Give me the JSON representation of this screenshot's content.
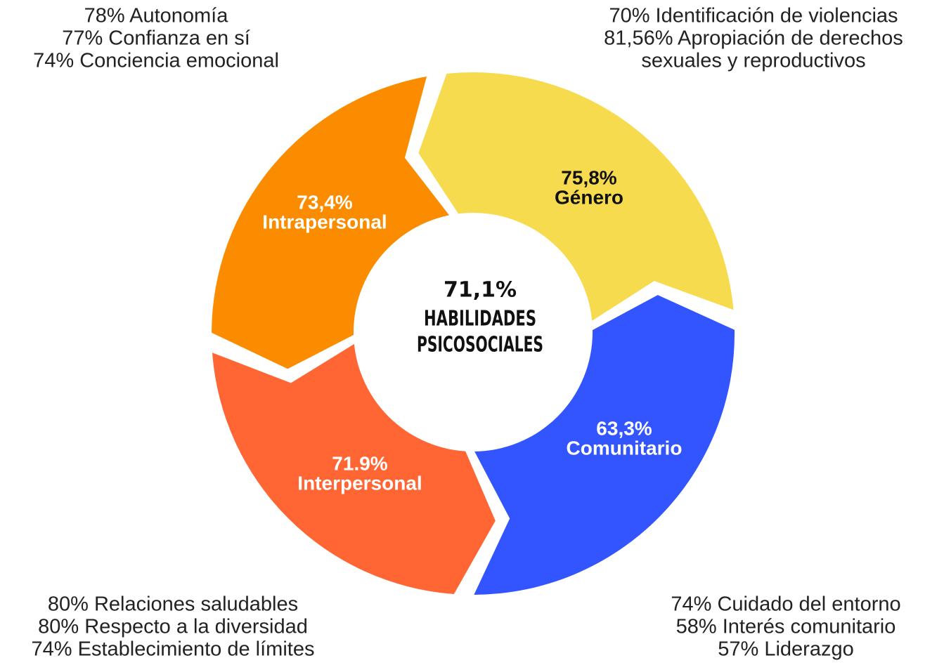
{
  "center": {
    "value": "71,1%",
    "lines": [
      "HABILIDADES",
      "PSICOSOCIALES"
    ]
  },
  "segments": [
    {
      "value": "73,4%",
      "label": "Intrapersonal",
      "items": [
        "78%  Autonomía",
        "77% Confianza en sí",
        "74% Conciencia emocional"
      ]
    },
    {
      "value": "75,8%",
      "label": "Género",
      "items": [
        "70% Identificación de violencias",
        "81,56% Apropiación de derechos",
        "sexuales y reproductivos"
      ]
    },
    {
      "value": "63,3%",
      "label": "Comunitario",
      "items": [
        "74%  Cuidado del entorno",
        "58% Interés comunitario",
        "57% Liderazgo"
      ]
    },
    {
      "value": "71.9%",
      "label": "Interpersonal",
      "items": [
        "80%  Relaciones saludables",
        "80% Respecto a la diversidad",
        "74% Establecimiento de límites"
      ]
    }
  ]
}
